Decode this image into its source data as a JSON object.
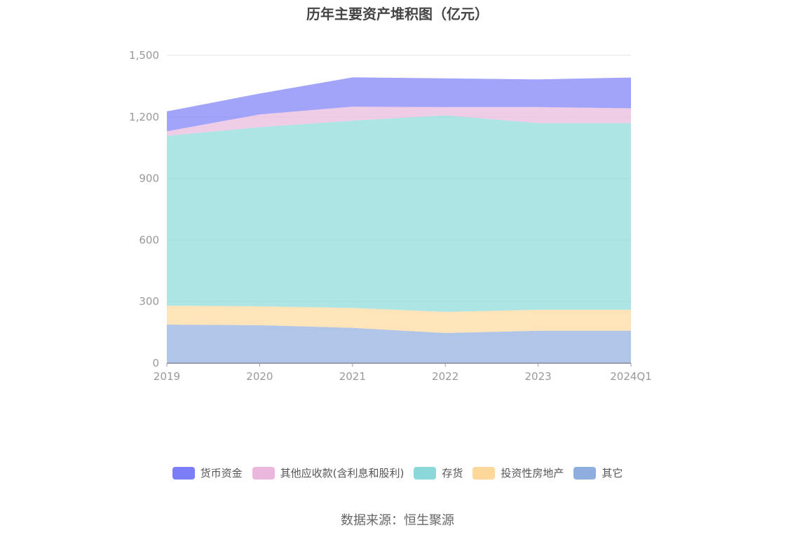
{
  "chart_data": {
    "type": "area",
    "stacked": true,
    "title": "历年主要资产堆积图（亿元）",
    "categories": [
      "2019",
      "2020",
      "2021",
      "2022",
      "2023",
      "2024Q1"
    ],
    "ylim": [
      0,
      1500
    ],
    "yticks": [
      "0",
      "300",
      "600",
      "900",
      "1,200",
      "1,500"
    ],
    "ytick_values": [
      0,
      300,
      600,
      900,
      1200,
      1500
    ],
    "grid": true,
    "legend_position": "bottom",
    "series": [
      {
        "name": "其它",
        "color": "#8fadde",
        "values": [
          188,
          185,
          172,
          147,
          158,
          158
        ]
      },
      {
        "name": "投资性房地产",
        "color": "#fdd89a",
        "values": [
          92,
          92,
          97,
          103,
          102,
          102
        ]
      },
      {
        "name": "存货",
        "color": "#8ad8d8",
        "values": [
          828,
          873,
          913,
          958,
          910,
          910
        ]
      },
      {
        "name": "其他应收款(含利息和股利)",
        "color": "#e9b8dc",
        "values": [
          22,
          62,
          68,
          40,
          78,
          72
        ]
      },
      {
        "name": "货币资金",
        "color": "#7b7ef6",
        "values": [
          97,
          102,
          143,
          140,
          135,
          150
        ]
      }
    ],
    "legend_order": [
      "货币资金",
      "其他应收款(含利息和股利)",
      "存货",
      "投资性房地产",
      "其它"
    ]
  },
  "source": "数据来源：恒生聚源"
}
